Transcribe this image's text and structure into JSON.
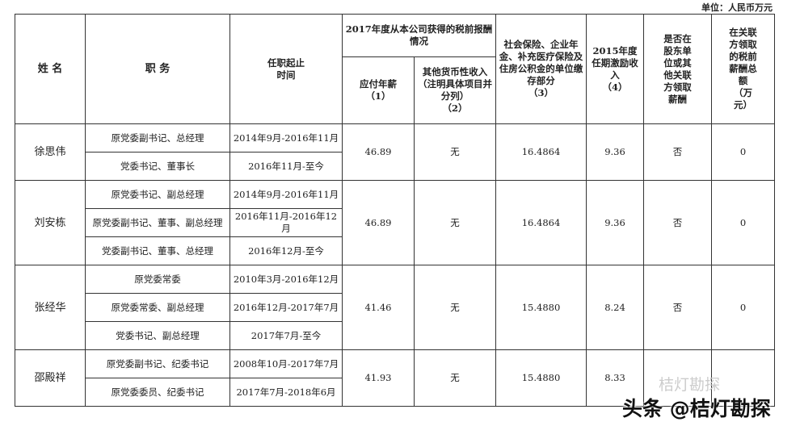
{
  "unit": "单位：人民币万元",
  "headers": {
    "name": "姓  名",
    "duty": "职  务",
    "term": "任职起止\n时间",
    "group": "2017年度从本公司获得的税前报酬情况",
    "salary": "应付年薪\n（1）",
    "other": "其他货币性收入（注明具体项目并分列）\n（2）",
    "social": "社会保险、企业年金、补充医疗保险及住房公积金的单位缴存部分\n（3）",
    "incentive": "2015年度任期激励收入\n（4）",
    "shareholder": "是否在股东单位或其他关联方领取薪酬",
    "related": "在关联方领取的税前薪酬总额\n（万元）"
  },
  "people": [
    {
      "name": "徐思伟",
      "roles": [
        {
          "duty": "原党委副书记、总经理",
          "term": "2014年9月-2016年11月"
        },
        {
          "duty": "党委书记、董事长",
          "term": "2016年11月-至今"
        }
      ],
      "salary": "46.89",
      "other": "无",
      "social": "16.4864",
      "incentive": "9.36",
      "shareholder": "否",
      "related": "0"
    },
    {
      "name": "刘安栋",
      "roles": [
        {
          "duty": "原党委书记、副总经理",
          "term": "2014年9月-2016年11月"
        },
        {
          "duty": "原党委副书记、董事、副总经理",
          "term": "2016年11月-2016年12月"
        },
        {
          "duty": "党委副书记、董事、总经理",
          "term": "2016年12月-至今"
        }
      ],
      "salary": "46.89",
      "other": "无",
      "social": "16.4864",
      "incentive": "9.36",
      "shareholder": "否",
      "related": "0"
    },
    {
      "name": "张经华",
      "roles": [
        {
          "duty": "原党委常委",
          "term": "2010年3月-2016年12月"
        },
        {
          "duty": "原党委常委、副总经理",
          "term": "2016年12月-2017年7月"
        },
        {
          "duty": "党委书记、副总经理",
          "term": "2017年7月-至今"
        }
      ],
      "salary": "41.46",
      "other": "无",
      "social": "15.4880",
      "incentive": "8.24",
      "shareholder": "否",
      "related": "0"
    },
    {
      "name": "邵殿祥",
      "roles": [
        {
          "duty": "原党委副书记、纪委书记",
          "term": "2008年10月-2017年7月"
        },
        {
          "duty": "原党委委员、纪委书记",
          "term": "2017年7月-2018年6月"
        }
      ],
      "salary": "41.93",
      "other": "无",
      "social": "15.4880",
      "incentive": "8.33",
      "shareholder": "",
      "related": ""
    }
  ],
  "watermark": {
    "top": "桔灯勘探",
    "main": "头条 @桔灯勘探"
  }
}
